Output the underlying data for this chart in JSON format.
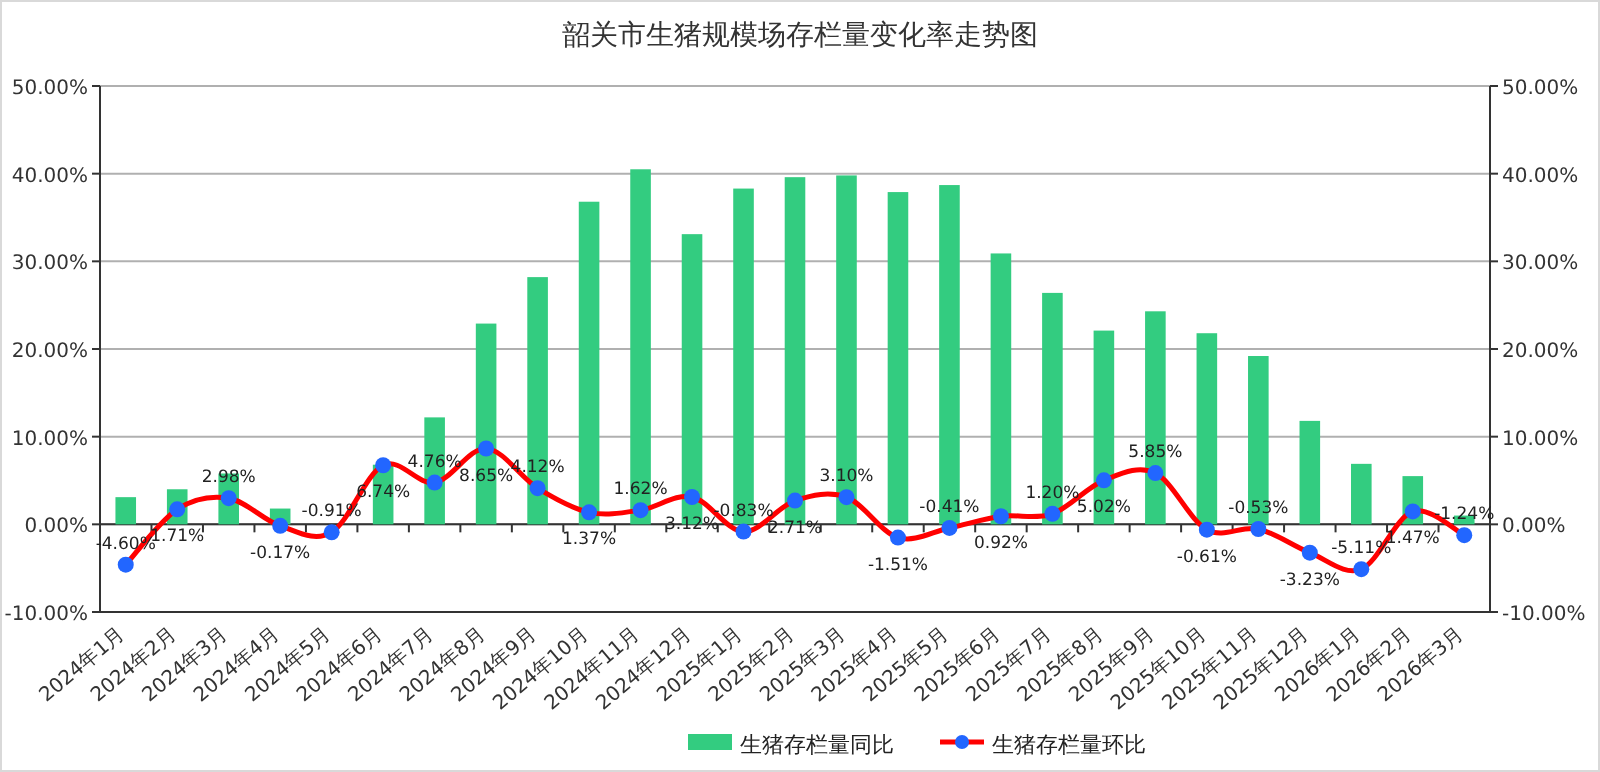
{
  "chart_data": {
    "type": "bar",
    "title": "韶关市生猪规模场存栏量变化率走势图",
    "categories": [
      "2024年1月",
      "2024年2月",
      "2024年3月",
      "2024年4月",
      "2024年5月",
      "2024年6月",
      "2024年7月",
      "2024年8月",
      "2024年9月",
      "2024年10月",
      "2024年11月",
      "2024年12月",
      "2025年1月",
      "2025年2月",
      "2025年3月",
      "2025年4月",
      "2025年5月",
      "2025年6月",
      "2025年7月",
      "2025年8月",
      "2025年9月",
      "2025年10月",
      "2025年11月",
      "2025年12月",
      "2026年1月",
      "2026年2月",
      "2026年3月"
    ],
    "series": [
      {
        "name": "生猪存栏量同比",
        "color": "#33cc80",
        "values": [
          3.1,
          4.0,
          5.8,
          1.8,
          0,
          6.8,
          12.2,
          22.9,
          28.2,
          36.8,
          40.5,
          33.1,
          38.3,
          39.6,
          39.8,
          37.9,
          38.7,
          30.9,
          26.4,
          22.1,
          24.3,
          21.8,
          19.2,
          11.8,
          6.9,
          5.5,
          1.0
        ]
      },
      {
        "name": "生猪存栏量环比",
        "type": "line",
        "axis": "y2",
        "color": "#ff0000",
        "colors": [
          "#2266ff",
          "#2266ff",
          "#2266ff",
          "#2266ff",
          "#2266ff",
          "#2266ff",
          "#2266ff",
          "#2266ff",
          "#2266ff",
          "#2266ff",
          "#2266ff",
          "#2266ff",
          "#2266ff",
          "#2266ff",
          "#2266ff",
          "#2266ff",
          "#2266ff",
          "#2266ff",
          "#2266ff",
          "#2266ff",
          "#2266ff",
          "#2266ff",
          "#2266ff",
          "#2266ff",
          "#2266ff",
          "#2266ff",
          "#2266ff"
        ],
        "marker": "circle",
        "values": [
          -4.6,
          1.71,
          2.98,
          -0.17,
          -0.91,
          6.74,
          4.76,
          8.65,
          4.12,
          1.37,
          1.62,
          3.12,
          -0.83,
          2.71,
          3.1,
          -1.51,
          -0.41,
          0.92,
          1.2,
          5.02,
          5.85,
          -0.61,
          -0.53,
          -3.23,
          -5.11,
          1.47,
          -1.24
        ],
        "value_labels": [
          "-4.60%",
          "1.71%",
          "2.98%",
          "-0.17%",
          "-0.91%",
          "6.74%",
          "4.76%",
          "8.65%",
          "4.12%",
          "1.37%",
          "1.62%",
          "3.12%",
          "-0.83%",
          "2.71%",
          "3.10%",
          "-1.51%",
          "-0.41%",
          "0.92%",
          "1.20%",
          "5.02%",
          "5.85%",
          "-0.61%",
          "-0.53%",
          "-3.23%",
          "-5.11%",
          "1.47%",
          "-1.24%"
        ]
      }
    ],
    "ylim": [
      -10,
      50
    ],
    "yticks": [
      {
        "value": -10,
        "label": "-10.00%"
      },
      {
        "value": 0,
        "label": "0.00%"
      },
      {
        "value": 10,
        "label": "10.00%"
      },
      {
        "value": 20,
        "label": "20.00%"
      },
      {
        "value": 30,
        "label": "30.00%"
      },
      {
        "value": 40,
        "label": "40.00%"
      },
      {
        "value": 50,
        "label": "50.00%"
      }
    ],
    "y2lim": [
      -10,
      50
    ],
    "y2ticks": [
      {
        "value": -10,
        "label": "-10.00%"
      },
      {
        "value": 0,
        "label": "0.00%"
      },
      {
        "value": 10,
        "label": "10.00%"
      },
      {
        "value": 20,
        "label": "20.00%"
      },
      {
        "value": 30,
        "label": "30.00%"
      },
      {
        "value": 40,
        "label": "40.00%"
      },
      {
        "value": 50,
        "label": "50.00%"
      }
    ],
    "grid": "y",
    "legend": "bottom"
  }
}
